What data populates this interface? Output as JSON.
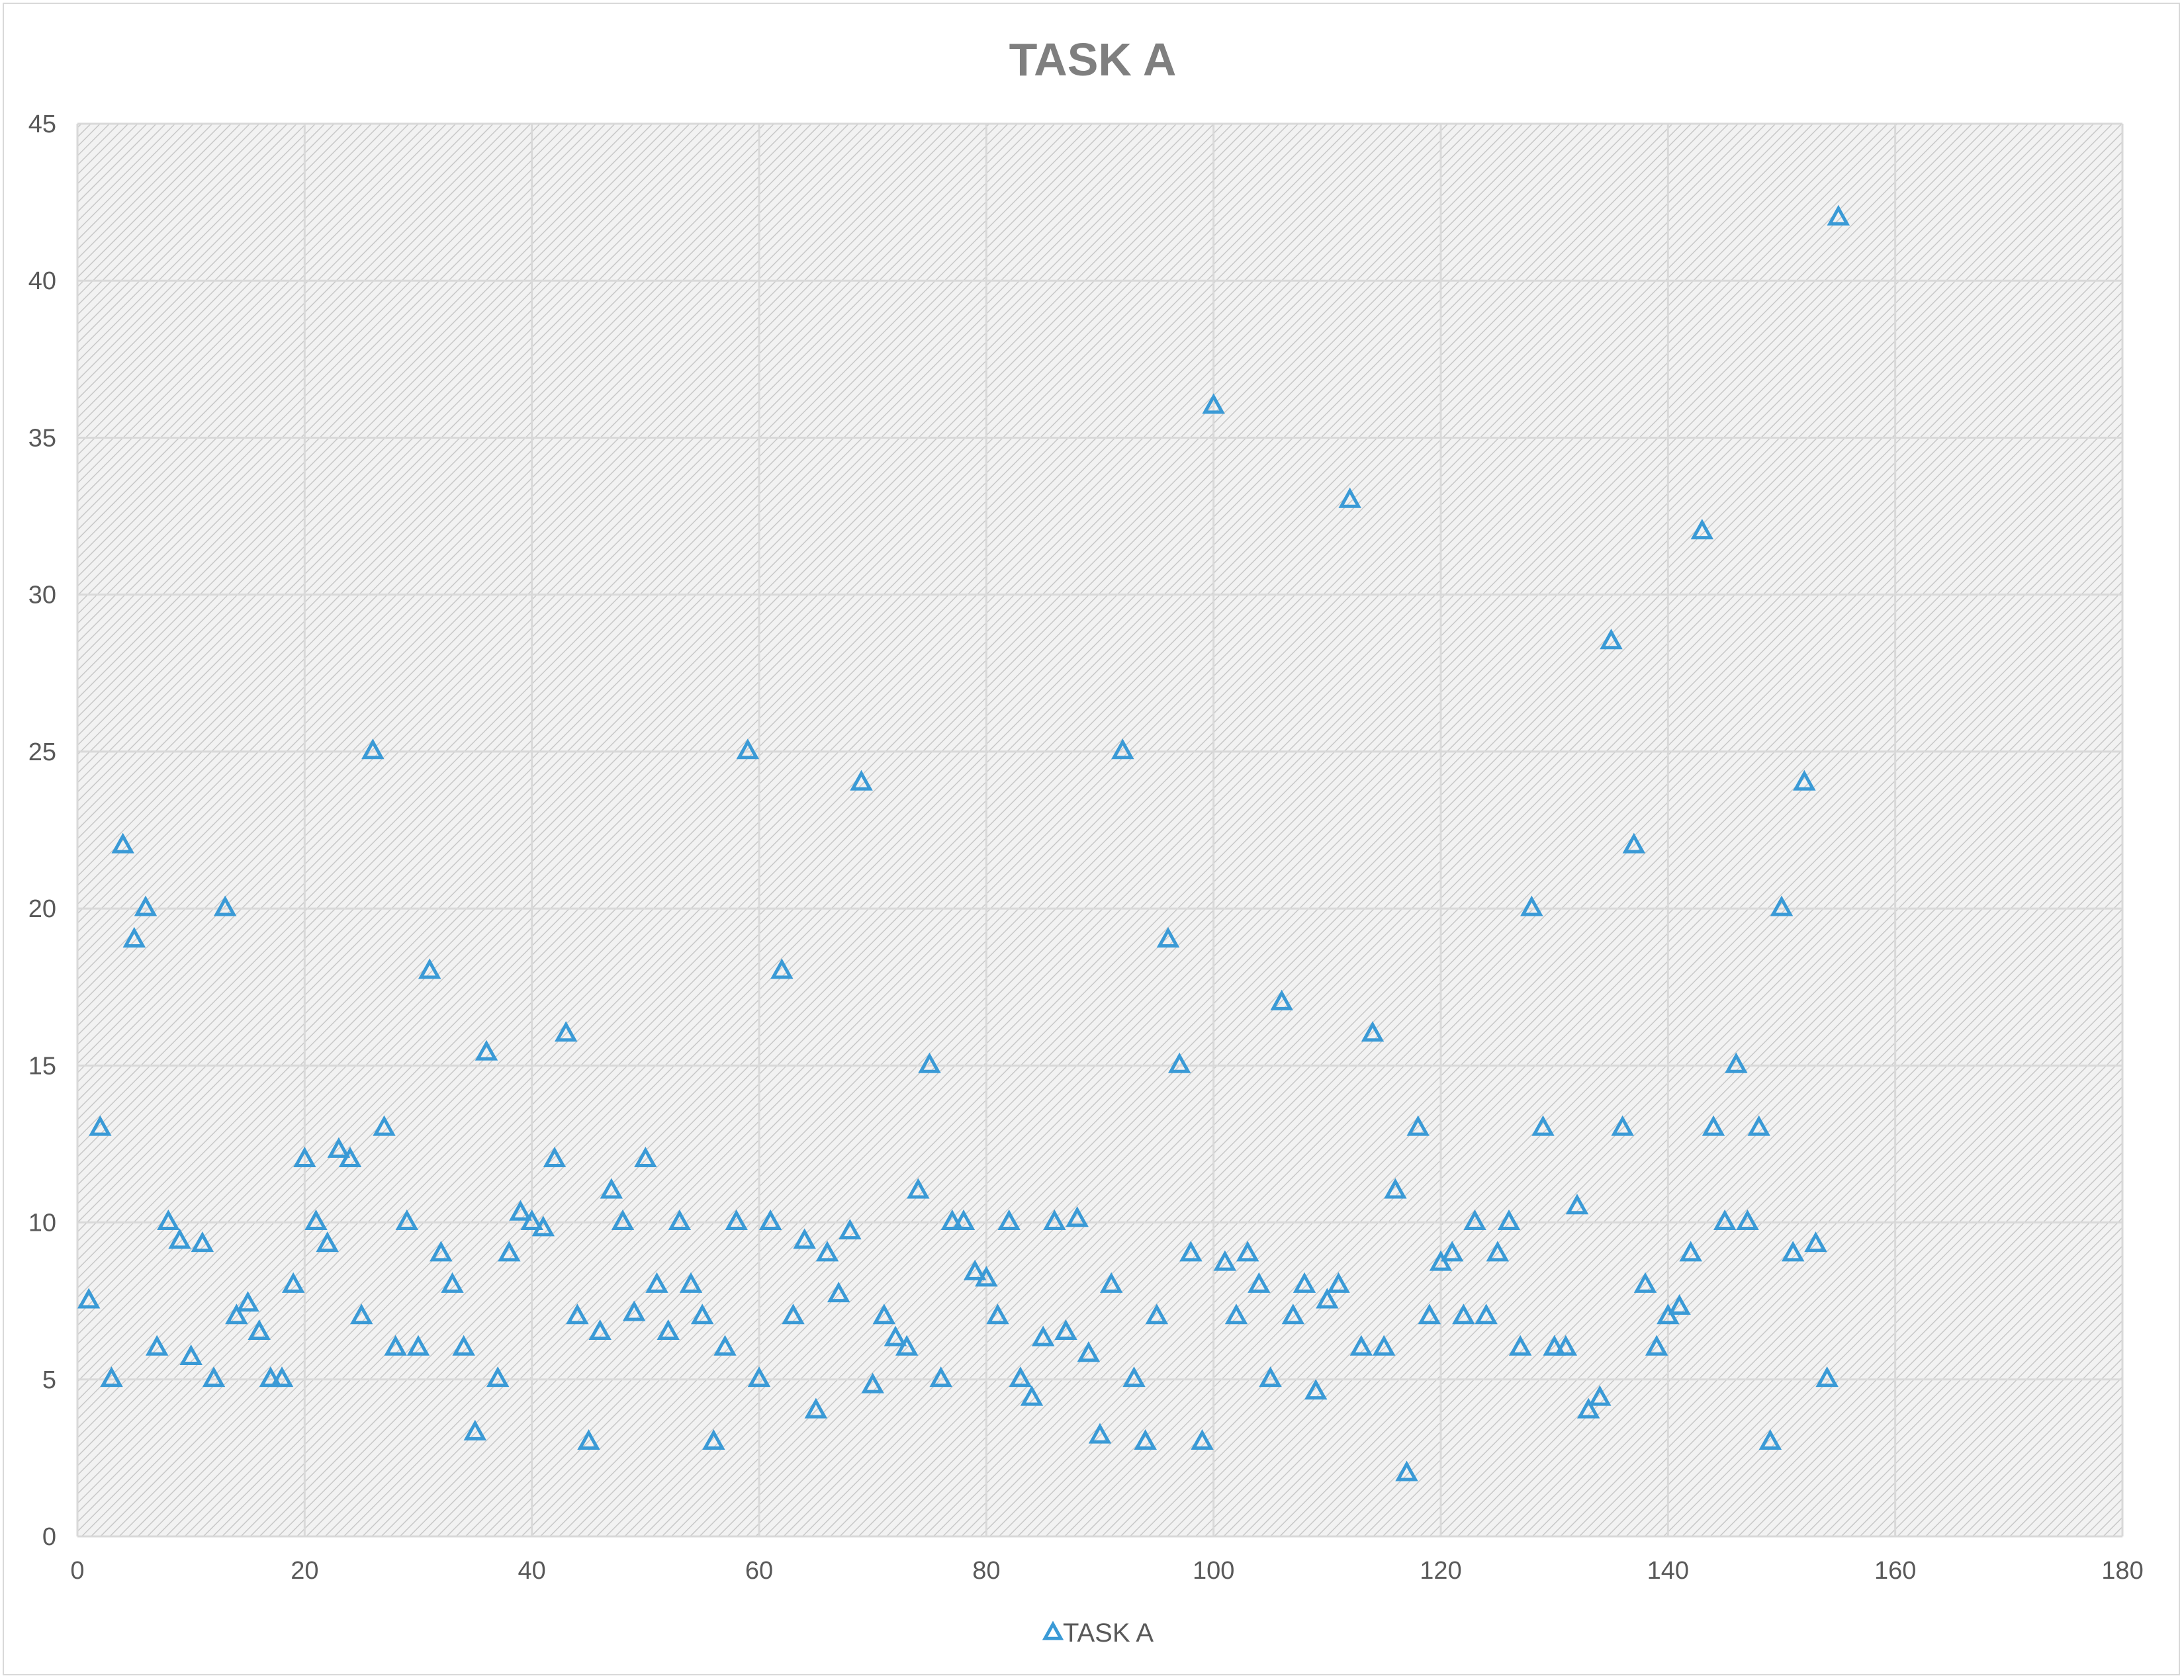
{
  "chart_data": {
    "type": "scatter",
    "title": "TASK A",
    "xlabel": "",
    "ylabel": "",
    "xlim": [
      0,
      180
    ],
    "ylim": [
      0,
      45
    ],
    "x_ticks": [
      "0",
      "20",
      "40",
      "60",
      "80",
      "100",
      "120",
      "140",
      "160",
      "180"
    ],
    "y_ticks": [
      "0",
      "5",
      "10",
      "15",
      "20",
      "25",
      "30",
      "35",
      "40",
      "45"
    ],
    "grid": true,
    "plot_background": "hatched light gray",
    "legend_position": "bottom",
    "marker": "open-triangle",
    "colors": {
      "series": "#3a9ad6",
      "grid": "#d9d9d9",
      "title": "#7f7f7f",
      "ticks": "#595959"
    },
    "series": [
      {
        "name": "TASK A",
        "points": [
          [
            1,
            7.5
          ],
          [
            2,
            13
          ],
          [
            3,
            5
          ],
          [
            4,
            22
          ],
          [
            5,
            19
          ],
          [
            6,
            20
          ],
          [
            7,
            6
          ],
          [
            8,
            10
          ],
          [
            9,
            9.4
          ],
          [
            10,
            5.7
          ],
          [
            11,
            9.3
          ],
          [
            12,
            5
          ],
          [
            13,
            20
          ],
          [
            14,
            7
          ],
          [
            15,
            7.4
          ],
          [
            16,
            6.5
          ],
          [
            17,
            5
          ],
          [
            18,
            5
          ],
          [
            19,
            8
          ],
          [
            20,
            12
          ],
          [
            21,
            10
          ],
          [
            22,
            9.3
          ],
          [
            23,
            12.3
          ],
          [
            24,
            12
          ],
          [
            25,
            7
          ],
          [
            26,
            25
          ],
          [
            27,
            13
          ],
          [
            28,
            6
          ],
          [
            29,
            10
          ],
          [
            30,
            6
          ],
          [
            31,
            18
          ],
          [
            32,
            9
          ],
          [
            33,
            8
          ],
          [
            34,
            6
          ],
          [
            35,
            3.3
          ],
          [
            36,
            15.4
          ],
          [
            37,
            5
          ],
          [
            38,
            9
          ],
          [
            39,
            10.3
          ],
          [
            40,
            10
          ],
          [
            41,
            9.8
          ],
          [
            42,
            12
          ],
          [
            43,
            16
          ],
          [
            44,
            7
          ],
          [
            45,
            3
          ],
          [
            46,
            6.5
          ],
          [
            47,
            11
          ],
          [
            48,
            10
          ],
          [
            49,
            7.1
          ],
          [
            50,
            12
          ],
          [
            51,
            8
          ],
          [
            52,
            6.5
          ],
          [
            53,
            10
          ],
          [
            54,
            8
          ],
          [
            55,
            7
          ],
          [
            56,
            3
          ],
          [
            57,
            6
          ],
          [
            58,
            10
          ],
          [
            59,
            25
          ],
          [
            60,
            5
          ],
          [
            61,
            10
          ],
          [
            62,
            18
          ],
          [
            63,
            7
          ],
          [
            64,
            9.4
          ],
          [
            65,
            4
          ],
          [
            66,
            9
          ],
          [
            67,
            7.7
          ],
          [
            68,
            9.7
          ],
          [
            69,
            24
          ],
          [
            70,
            4.8
          ],
          [
            71,
            7
          ],
          [
            72,
            6.3
          ],
          [
            73,
            6
          ],
          [
            74,
            11
          ],
          [
            75,
            15
          ],
          [
            76,
            5
          ],
          [
            77,
            10
          ],
          [
            78,
            10
          ],
          [
            79,
            8.4
          ],
          [
            80,
            8.2
          ],
          [
            81,
            7
          ],
          [
            82,
            10
          ],
          [
            83,
            5
          ],
          [
            84,
            4.4
          ],
          [
            85,
            6.3
          ],
          [
            86,
            10
          ],
          [
            87,
            6.5
          ],
          [
            88,
            10.1
          ],
          [
            89,
            5.8
          ],
          [
            90,
            3.2
          ],
          [
            91,
            8
          ],
          [
            92,
            25
          ],
          [
            93,
            5
          ],
          [
            94,
            3
          ],
          [
            95,
            7
          ],
          [
            96,
            19
          ],
          [
            97,
            15
          ],
          [
            98,
            9
          ],
          [
            99,
            3
          ],
          [
            100,
            36
          ],
          [
            101,
            8.7
          ],
          [
            102,
            7
          ],
          [
            103,
            9
          ],
          [
            104,
            8
          ],
          [
            105,
            5
          ],
          [
            106,
            17
          ],
          [
            107,
            7
          ],
          [
            108,
            8
          ],
          [
            109,
            4.6
          ],
          [
            110,
            7.5
          ],
          [
            111,
            8
          ],
          [
            112,
            33
          ],
          [
            113,
            6
          ],
          [
            114,
            16
          ],
          [
            115,
            6
          ],
          [
            116,
            11
          ],
          [
            117,
            2
          ],
          [
            118,
            13
          ],
          [
            119,
            7
          ],
          [
            120,
            8.7
          ],
          [
            121,
            9
          ],
          [
            122,
            7
          ],
          [
            123,
            10
          ],
          [
            124,
            7
          ],
          [
            125,
            9
          ],
          [
            126,
            10
          ],
          [
            127,
            6
          ],
          [
            128,
            20
          ],
          [
            129,
            13
          ],
          [
            130,
            6
          ],
          [
            131,
            6
          ],
          [
            132,
            10.5
          ],
          [
            133,
            4
          ],
          [
            134,
            4.4
          ],
          [
            135,
            28.5
          ],
          [
            136,
            13
          ],
          [
            137,
            22
          ],
          [
            138,
            8
          ],
          [
            139,
            6
          ],
          [
            140,
            7
          ],
          [
            141,
            7.3
          ],
          [
            142,
            9
          ],
          [
            143,
            32
          ],
          [
            144,
            13
          ],
          [
            145,
            10
          ],
          [
            146,
            15
          ],
          [
            147,
            10
          ],
          [
            148,
            13
          ],
          [
            149,
            3
          ],
          [
            150,
            20
          ],
          [
            151,
            9
          ],
          [
            152,
            24
          ],
          [
            153,
            9.3
          ],
          [
            154,
            5
          ],
          [
            155,
            42
          ]
        ]
      }
    ]
  }
}
